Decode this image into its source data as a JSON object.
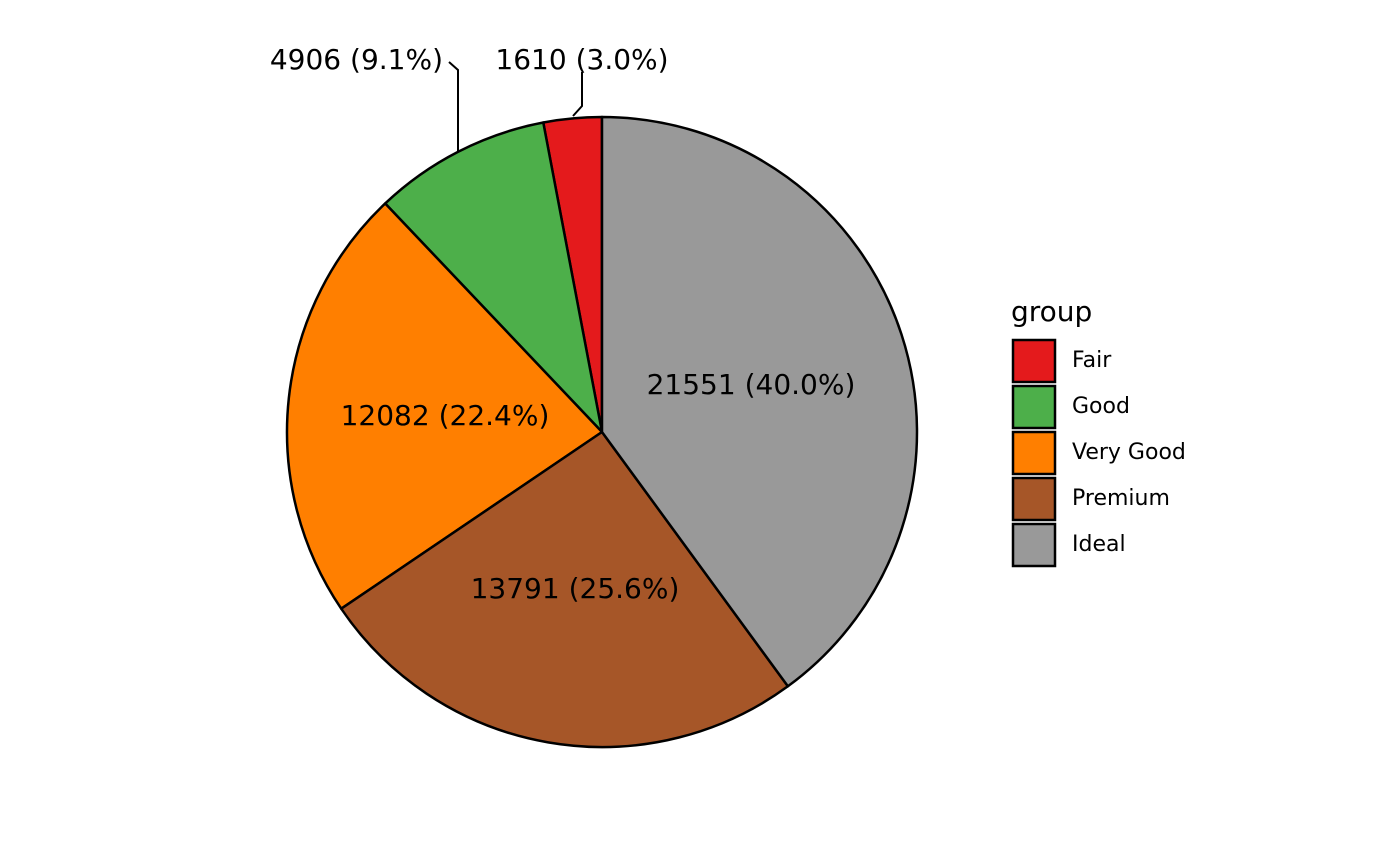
{
  "chart_data": {
    "type": "pie",
    "categories": [
      "Fair",
      "Good",
      "Very Good",
      "Premium",
      "Ideal"
    ],
    "values": [
      1610,
      4906,
      12082,
      13791,
      21551
    ],
    "labels": [
      "1610 (3.0%)",
      "4906 (9.1%)",
      "12082 (22.4%)",
      "13791 (25.6%)",
      "21551 (40.0%)"
    ],
    "colors": [
      "#e41a1c",
      "#4daf4a",
      "#ff7f00",
      "#a65628",
      "#999999"
    ],
    "legend": {
      "title": "group",
      "placement": "right"
    },
    "start": "12 o'clock",
    "direction": "counterclockwise"
  }
}
